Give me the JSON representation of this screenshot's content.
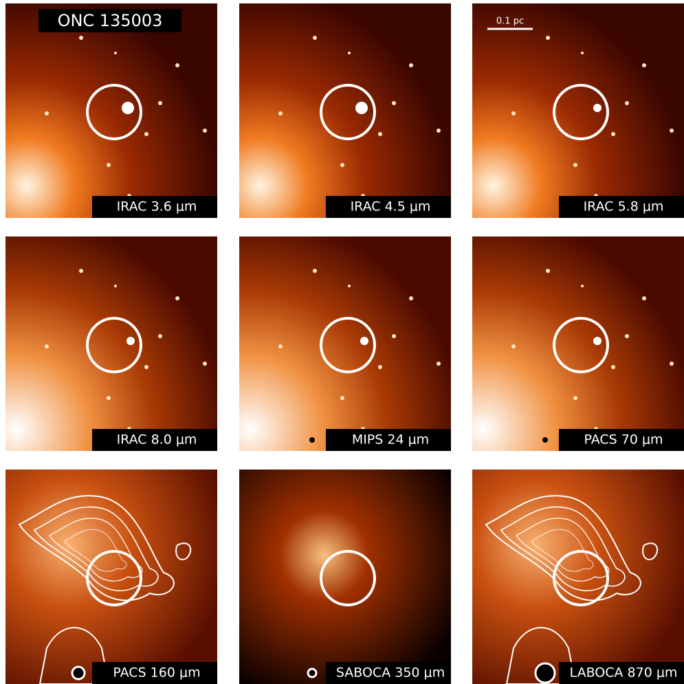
{
  "title": "ONC 135003",
  "scale_bar": "0.1 pc",
  "panels": [
    {
      "label": "IRAC 3.6 μm"
    },
    {
      "label": "IRAC 4.5 μm"
    },
    {
      "label": "IRAC 5.8 μm"
    },
    {
      "label": "IRAC 8.0 μm"
    },
    {
      "label": "MIPS 24 μm"
    },
    {
      "label": "PACS 70 μm"
    },
    {
      "label": "PACS 160 μm"
    },
    {
      "label": "SABOCA 350 μm"
    },
    {
      "label": "LABOCA 870 μm"
    }
  ]
}
